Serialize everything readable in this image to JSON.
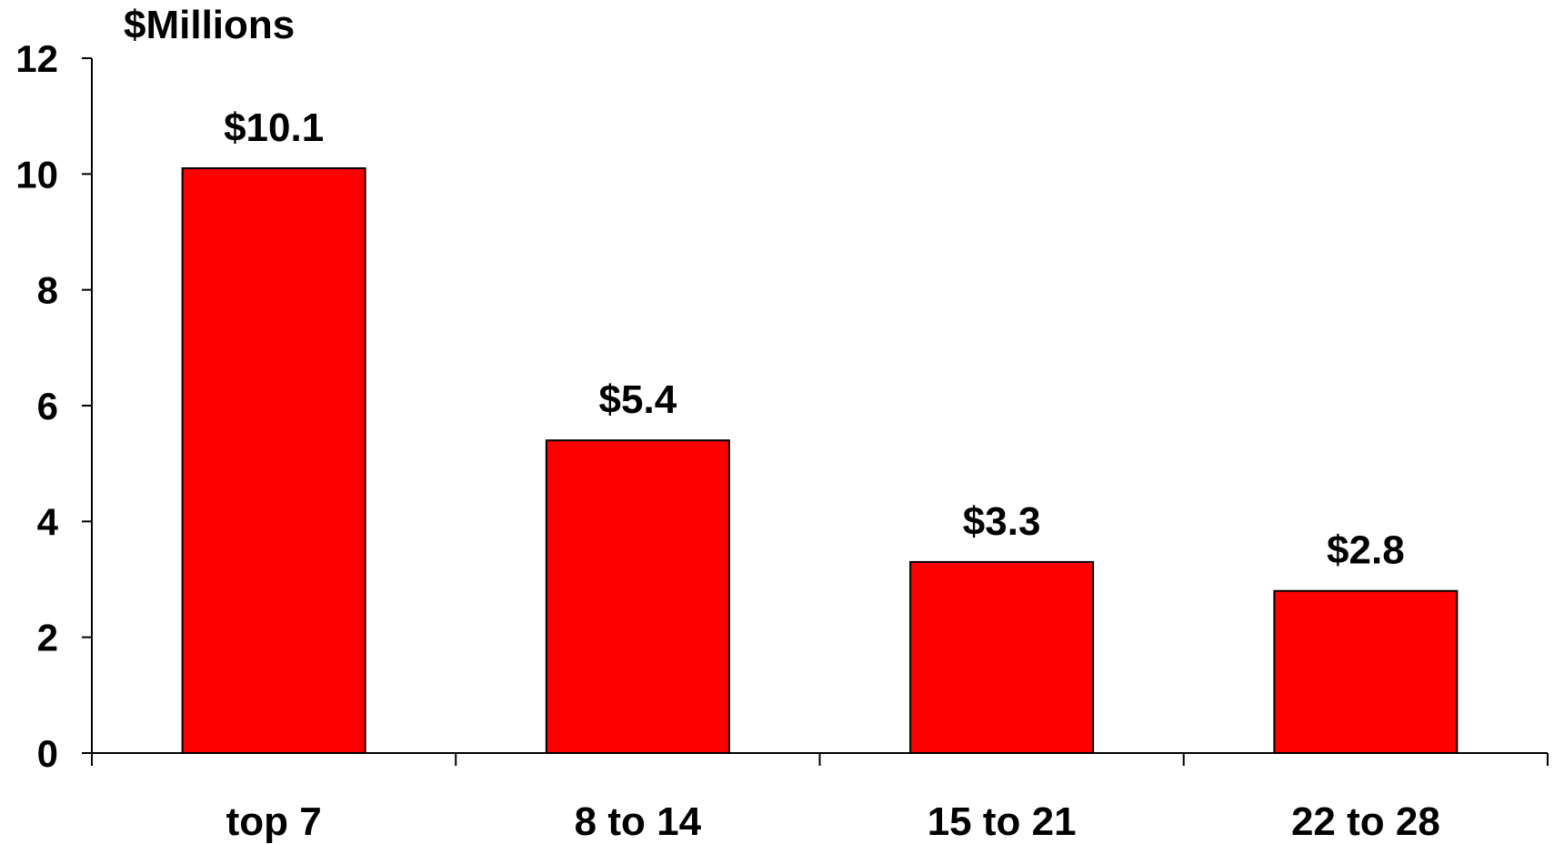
{
  "chart_data": {
    "type": "bar",
    "unit_label": "$Millions",
    "categories": [
      "top 7",
      "8 to 14",
      "15 to 21",
      "22 to 28"
    ],
    "values": [
      10.1,
      5.4,
      3.3,
      2.8
    ],
    "data_labels": [
      "$10.1",
      "$5.4",
      "$3.3",
      "$2.8"
    ],
    "y_ticks": [
      0,
      2,
      4,
      6,
      8,
      10,
      12
    ],
    "ylim": [
      0,
      12
    ],
    "bar_color": "#ff0000",
    "grid": false,
    "legend": "none"
  }
}
